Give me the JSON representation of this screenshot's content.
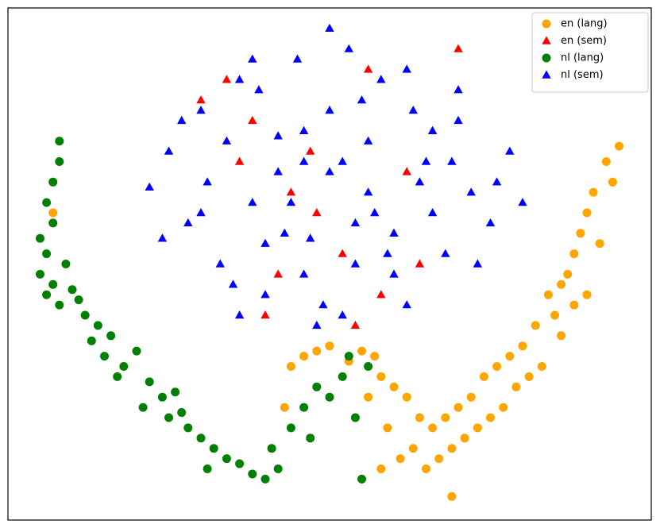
{
  "chart_data": {
    "type": "scatter",
    "xlim": [
      0,
      100
    ],
    "ylim": [
      0,
      100
    ],
    "legend": "upper right",
    "series": [
      {
        "name": "en (lang)",
        "color": "#ffa500",
        "marker": "circle",
        "x": [
          95,
          93,
          94,
          91,
          90,
          89,
          92,
          88,
          87,
          90,
          86,
          88,
          85,
          84,
          82,
          86,
          80,
          83,
          78,
          81,
          76,
          79,
          74,
          77,
          72,
          75,
          70,
          73,
          68,
          71,
          66,
          69,
          64,
          67,
          62,
          65,
          60,
          63,
          58,
          61,
          57,
          59,
          56,
          58,
          55,
          53,
          50,
          48,
          46,
          44,
          43,
          69,
          7
        ],
        "values": [
          73,
          70,
          66,
          64,
          60,
          56,
          54,
          52,
          48,
          44,
          46,
          42,
          40,
          44,
          38,
          36,
          34,
          30,
          32,
          28,
          30,
          26,
          28,
          22,
          24,
          20,
          22,
          18,
          20,
          16,
          18,
          14,
          20,
          12,
          24,
          10,
          26,
          14,
          28,
          12,
          32,
          18,
          24,
          10,
          33,
          31,
          34,
          33,
          32,
          30,
          22,
          4.6,
          60
        ]
      },
      {
        "name": "en (sem)",
        "color": "#ff0000",
        "marker": "triangle",
        "x": [
          70,
          30,
          36,
          42,
          48,
          54,
          60,
          66,
          34,
          44,
          52,
          58,
          40,
          62,
          38,
          56,
          47,
          64
        ],
        "values": [
          92,
          82,
          70,
          48,
          60,
          38,
          56,
          76,
          86,
          64,
          52,
          44,
          40,
          68,
          78,
          88,
          72,
          50
        ]
      },
      {
        "name": "nl (lang)",
        "color": "#008000",
        "marker": "circle",
        "x": [
          8,
          8,
          7,
          6,
          7,
          5,
          6,
          5,
          7,
          9,
          6,
          8,
          10,
          12,
          14,
          11,
          13,
          16,
          15,
          18,
          20,
          17,
          22,
          24,
          21,
          26,
          25,
          28,
          30,
          27,
          32,
          34,
          31,
          36,
          38,
          40,
          42,
          41,
          44,
          46,
          48,
          47,
          50,
          52,
          53,
          54,
          55,
          56
        ],
        "values": [
          74,
          70,
          66,
          62,
          58,
          55,
          52,
          48,
          46,
          50,
          44,
          42,
          45,
          40,
          38,
          43,
          35,
          36,
          32,
          30,
          33,
          28,
          27,
          24,
          22,
          25,
          20,
          18,
          16,
          21,
          14,
          12,
          10,
          11,
          9,
          8,
          10,
          14,
          18,
          22,
          26,
          16,
          24,
          28,
          32,
          20,
          8,
          30
        ]
      },
      {
        "name": "nl (sem)",
        "color": "#0000ff",
        "marker": "triangle",
        "x": [
          22,
          25,
          28,
          30,
          33,
          36,
          38,
          40,
          42,
          45,
          47,
          50,
          52,
          55,
          57,
          60,
          62,
          65,
          68,
          70,
          72,
          75,
          78,
          80,
          24,
          27,
          31,
          35,
          39,
          43,
          46,
          49,
          53,
          56,
          59,
          63,
          66,
          69,
          73,
          76,
          30,
          34,
          38,
          42,
          46,
          50,
          54,
          58,
          62,
          66,
          70,
          36,
          40,
          44,
          48,
          52,
          56,
          60,
          64,
          50,
          54,
          46
        ],
        "values": [
          65,
          72,
          58,
          80,
          50,
          86,
          62,
          44,
          75,
          90,
          55,
          68,
          40,
          82,
          60,
          48,
          88,
          70,
          52,
          78,
          64,
          58,
          72,
          62,
          55,
          78,
          66,
          46,
          84,
          56,
          70,
          42,
          92,
          74,
          52,
          80,
          60,
          70,
          50,
          66,
          60,
          74,
          90,
          68,
          48,
          80,
          58,
          86,
          42,
          76,
          84,
          40,
          54,
          62,
          38,
          70,
          64,
          56,
          66,
          96,
          50,
          76
        ]
      }
    ]
  }
}
